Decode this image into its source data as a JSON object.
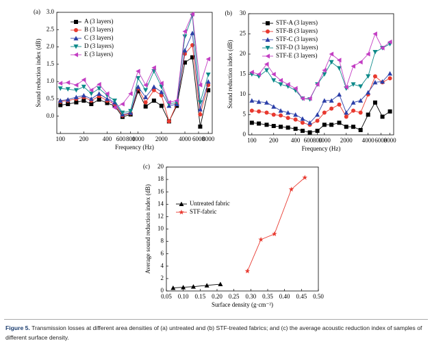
{
  "chart_data": [
    {
      "type": "line",
      "panel": "(a)",
      "xscale": "log",
      "xlabel": "Frequency (Hz)",
      "ylabel": "Sound reduction index (dB)",
      "x": [
        100,
        125,
        160,
        200,
        250,
        315,
        400,
        500,
        630,
        800,
        1000,
        1250,
        1600,
        2000,
        2500,
        3150,
        4000,
        5000,
        6300,
        8000
      ],
      "xlim": [
        90,
        9000
      ],
      "xticks": [
        100,
        200,
        400,
        600,
        800,
        1000,
        2000,
        4000,
        6000,
        8000
      ],
      "ylim": [
        -0.5,
        3.0
      ],
      "yticks": [
        {
          "value": 0,
          "label": "0.0"
        },
        0.5,
        {
          "value": 1,
          "label": "1.0"
        },
        1.5,
        {
          "value": 2,
          "label": "2.0"
        },
        2.5,
        {
          "value": 3,
          "label": "3.0"
        }
      ],
      "legend": "upper left",
      "series": [
        {
          "name": "A (3 layers)",
          "color": "#000000",
          "marker": "square",
          "values": [
            0.32,
            0.35,
            0.4,
            0.45,
            0.35,
            0.48,
            0.38,
            0.3,
            -0.02,
            0.05,
            0.72,
            0.28,
            0.45,
            0.3,
            -0.15,
            0.3,
            1.55,
            1.7,
            -0.3,
            0.75
          ]
        },
        {
          "name": "B (3 layers)",
          "color": "#e8392f",
          "marker": "circle",
          "values": [
            0.42,
            0.45,
            0.5,
            0.55,
            0.45,
            0.58,
            0.45,
            0.35,
            0.02,
            0.08,
            0.8,
            0.4,
            0.75,
            0.6,
            -0.15,
            0.35,
            1.8,
            2.05,
            0.05,
            0.9
          ]
        },
        {
          "name": "C (3 layers)",
          "color": "#2b3fa8",
          "marker": "triangle-up",
          "values": [
            0.45,
            0.48,
            0.55,
            0.6,
            0.5,
            0.65,
            0.5,
            0.4,
            0.05,
            0.1,
            0.85,
            0.55,
            0.85,
            0.7,
            0.3,
            0.35,
            1.9,
            2.4,
            0.2,
            1.0
          ]
        },
        {
          "name": "D (3 layers)",
          "color": "#0d8a8a",
          "marker": "triangle-down",
          "values": [
            0.8,
            0.78,
            0.75,
            0.85,
            0.65,
            0.8,
            0.6,
            0.45,
            0.1,
            0.15,
            1.1,
            0.75,
            1.3,
            0.85,
            0.35,
            0.4,
            2.3,
            2.9,
            0.4,
            1.2
          ]
        },
        {
          "name": "E (3 layers)",
          "color": "#c33ec3",
          "marker": "triangle-left",
          "values": [
            0.95,
            0.97,
            0.9,
            1.05,
            0.75,
            0.92,
            0.65,
            0.25,
            0.35,
            0.65,
            1.3,
            0.9,
            1.4,
            0.95,
            0.4,
            0.45,
            2.45,
            2.95,
            0.9,
            1.65
          ]
        }
      ]
    },
    {
      "type": "line",
      "panel": "(b)",
      "xscale": "log",
      "xlabel": "Frequency (Hz)",
      "ylabel": "Sound reduction index (dB)",
      "x": [
        100,
        125,
        160,
        200,
        250,
        315,
        400,
        500,
        630,
        800,
        1000,
        1250,
        1600,
        2000,
        2500,
        3150,
        4000,
        5000,
        6300,
        8000
      ],
      "xlim": [
        90,
        9000
      ],
      "xticks": [
        100,
        200,
        400,
        600,
        800,
        1000,
        2000,
        4000,
        6000,
        8000
      ],
      "ylim": [
        0,
        30
      ],
      "yticks": [
        0,
        5,
        10,
        15,
        20,
        25,
        30
      ],
      "legend": "upper left",
      "series": [
        {
          "name": "STF-A (3 layers)",
          "color": "#000000",
          "marker": "square",
          "values": [
            3.0,
            2.8,
            2.5,
            2.2,
            2.0,
            1.8,
            1.5,
            1.0,
            0.6,
            1.0,
            2.5,
            2.5,
            3.0,
            2.0,
            2.0,
            1.2,
            5.0,
            8.0,
            4.5,
            5.8
          ]
        },
        {
          "name": "STF-B (3 layers)",
          "color": "#e8392f",
          "marker": "circle",
          "values": [
            6.0,
            5.8,
            5.5,
            5.0,
            4.8,
            4.2,
            3.8,
            3.0,
            2.5,
            3.5,
            5.5,
            6.5,
            7.5,
            4.5,
            6.0,
            5.5,
            10.0,
            14.5,
            13.0,
            14.0
          ]
        },
        {
          "name": "STF-C (3 layers)",
          "color": "#2b3fa8",
          "marker": "triangle-up",
          "values": [
            8.5,
            8.2,
            8.0,
            7.0,
            6.0,
            5.5,
            5.0,
            4.0,
            3.0,
            5.0,
            8.5,
            8.5,
            10.0,
            5.5,
            8.0,
            8.5,
            10.5,
            13.0,
            13.2,
            15.2
          ]
        },
        {
          "name": "STF-D (3 layers)",
          "color": "#0d8a8a",
          "marker": "triangle-down",
          "values": [
            15.0,
            14.5,
            16.0,
            13.5,
            12.5,
            12.0,
            11.0,
            9.0,
            8.8,
            12.5,
            15.0,
            18.0,
            16.5,
            11.5,
            12.5,
            12.0,
            14.5,
            20.5,
            21.5,
            22.5
          ]
        },
        {
          "name": "STF-E (3 layers)",
          "color": "#c33ec3",
          "marker": "triangle-left",
          "values": [
            15.5,
            15.0,
            17.5,
            15.0,
            13.5,
            12.5,
            11.5,
            9.0,
            9.0,
            12.5,
            16.0,
            20.0,
            18.5,
            11.8,
            17.0,
            18.0,
            20.0,
            25.0,
            21.5,
            23.0
          ]
        }
      ]
    },
    {
      "type": "line",
      "panel": "(c)",
      "xscale": "linear",
      "xlabel": "Surface density (g·cm⁻²)",
      "ylabel": "Average sound reduction index (dB)",
      "xlim": [
        0.05,
        0.5
      ],
      "xticks": [
        0.05,
        {
          "value": 0.1,
          "label": "0.10"
        },
        0.15,
        {
          "value": 0.2,
          "label": "0.20"
        },
        0.25,
        {
          "value": 0.3,
          "label": "0.30"
        },
        0.35,
        {
          "value": 0.4,
          "label": "0.40"
        },
        0.45,
        {
          "value": 0.5,
          "label": "0.50"
        }
      ],
      "ylim": [
        0,
        20
      ],
      "yticks": [
        0,
        2,
        4,
        6,
        8,
        10,
        12,
        14,
        16,
        18,
        20
      ],
      "legend": "center left",
      "series": [
        {
          "name": "Untreated fabric",
          "color": "#000000",
          "marker": "triangle-up",
          "x": [
            0.07,
            0.1,
            0.13,
            0.17,
            0.21
          ],
          "values": [
            0.5,
            0.6,
            0.7,
            0.9,
            1.1
          ]
        },
        {
          "name": "STF-fabric",
          "color": "#e8392f",
          "marker": "star",
          "x": [
            0.29,
            0.33,
            0.37,
            0.42,
            0.46
          ],
          "values": [
            3.2,
            8.3,
            9.2,
            16.4,
            18.3
          ]
        }
      ]
    }
  ],
  "caption": {
    "label": "Figure 5.",
    "text": "Transmission losses at different area densities of (a) untreated and (b) STF-treated fabrics; and (c) the average acoustic reduction index of samples of different surface density."
  }
}
